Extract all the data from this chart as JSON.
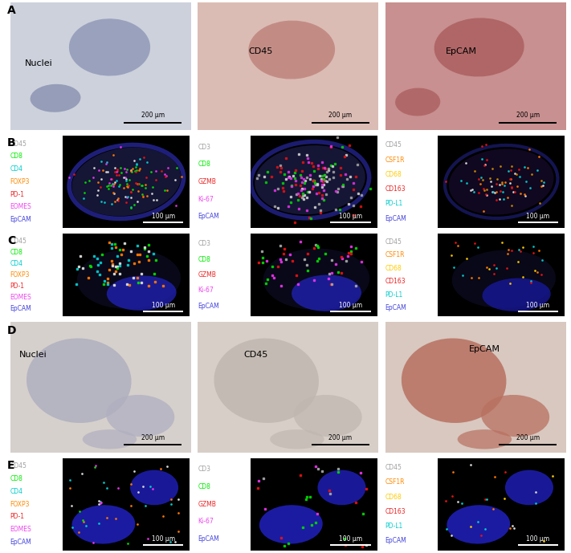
{
  "panel_labels": [
    "A",
    "B",
    "C",
    "D",
    "E"
  ],
  "legend_B_left": [
    {
      "text": "CD45",
      "color": "#a0a0a0"
    },
    {
      "text": "CD8",
      "color": "#00ee00"
    },
    {
      "text": "CD4",
      "color": "#00cccc"
    },
    {
      "text": "FOXP3",
      "color": "#ff8800"
    },
    {
      "text": "PD-1",
      "color": "#ee2222"
    },
    {
      "text": "EOMES",
      "color": "#ee44ee"
    },
    {
      "text": "EpCAM",
      "color": "#4444dd"
    }
  ],
  "legend_B_mid": [
    {
      "text": "CD3",
      "color": "#a0a0a0"
    },
    {
      "text": "CD8",
      "color": "#00ee00"
    },
    {
      "text": "GZMB",
      "color": "#ee2222"
    },
    {
      "text": "Ki-67",
      "color": "#ee44ee"
    },
    {
      "text": "EpCAM",
      "color": "#4444dd"
    }
  ],
  "legend_B_right": [
    {
      "text": "CD45",
      "color": "#a0a0a0"
    },
    {
      "text": "CSF1R",
      "color": "#ff8800"
    },
    {
      "text": "CD68",
      "color": "#ffcc00"
    },
    {
      "text": "CD163",
      "color": "#ee2222"
    },
    {
      "text": "PD-L1",
      "color": "#00cccc"
    },
    {
      "text": "EpCAM",
      "color": "#4444dd"
    }
  ],
  "legend_C_left": [
    {
      "text": "CD45",
      "color": "#a0a0a0"
    },
    {
      "text": "CD8",
      "color": "#00ee00"
    },
    {
      "text": "CD4",
      "color": "#00cccc"
    },
    {
      "text": "FOXP3",
      "color": "#ff8800"
    },
    {
      "text": "PD-1",
      "color": "#ee2222"
    },
    {
      "text": "EOMES",
      "color": "#ee44ee"
    },
    {
      "text": "EpCAM",
      "color": "#4444dd"
    }
  ],
  "legend_C_mid": [
    {
      "text": "CD3",
      "color": "#a0a0a0"
    },
    {
      "text": "CD8",
      "color": "#00ee00"
    },
    {
      "text": "GZMB",
      "color": "#ee2222"
    },
    {
      "text": "Ki-67",
      "color": "#ee44ee"
    },
    {
      "text": "EpCAM",
      "color": "#4444dd"
    }
  ],
  "legend_C_right": [
    {
      "text": "CD45",
      "color": "#a0a0a0"
    },
    {
      "text": "CSF1R",
      "color": "#ff8800"
    },
    {
      "text": "CD68",
      "color": "#ffcc00"
    },
    {
      "text": "CD163",
      "color": "#ee2222"
    },
    {
      "text": "PD-L1",
      "color": "#00cccc"
    },
    {
      "text": "EpCAM",
      "color": "#4444dd"
    }
  ],
  "legend_E_left": [
    {
      "text": "CD45",
      "color": "#a0a0a0"
    },
    {
      "text": "CD8",
      "color": "#00ee00"
    },
    {
      "text": "CD4",
      "color": "#00cccc"
    },
    {
      "text": "FOXP3",
      "color": "#ff8800"
    },
    {
      "text": "PD-1",
      "color": "#ee2222"
    },
    {
      "text": "EOMES",
      "color": "#ee44ee"
    },
    {
      "text": "EpCAM",
      "color": "#4444dd"
    }
  ],
  "legend_E_mid": [
    {
      "text": "CD3",
      "color": "#a0a0a0"
    },
    {
      "text": "CD8",
      "color": "#00ee00"
    },
    {
      "text": "GZMB",
      "color": "#ee2222"
    },
    {
      "text": "Ki-67",
      "color": "#ee44ee"
    },
    {
      "text": "EpCAM",
      "color": "#4444dd"
    }
  ],
  "legend_E_right": [
    {
      "text": "CD45",
      "color": "#a0a0a0"
    },
    {
      "text": "CSF1R",
      "color": "#ff8800"
    },
    {
      "text": "CD68",
      "color": "#ffcc00"
    },
    {
      "text": "CD163",
      "color": "#ee2222"
    },
    {
      "text": "PD-L1",
      "color": "#00cccc"
    },
    {
      "text": "EpCAM",
      "color": "#4444dd"
    }
  ],
  "scale_bar_200": "200 μm",
  "scale_bar_100": "100 μm",
  "background_color": "#ffffff"
}
